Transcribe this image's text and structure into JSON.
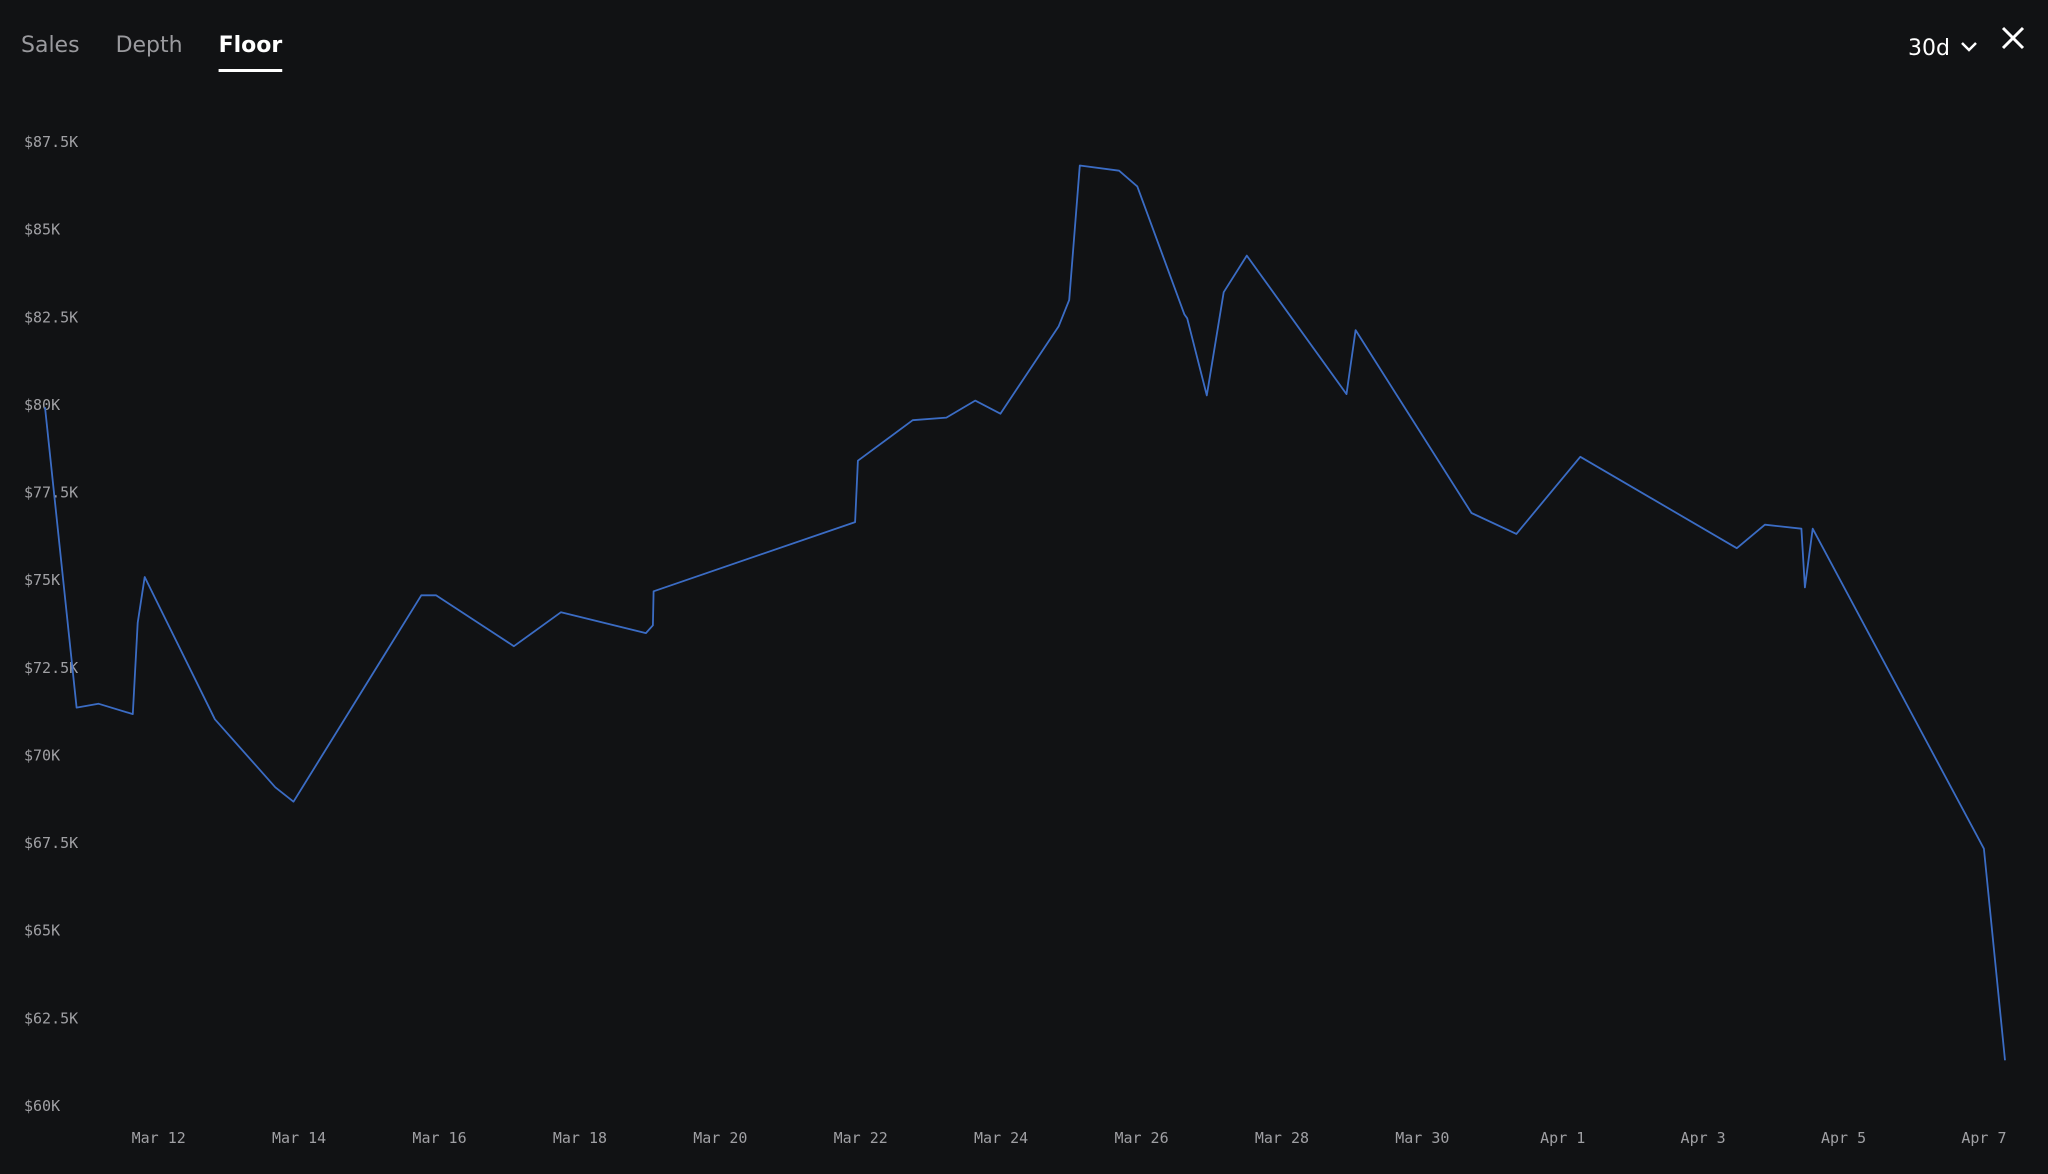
{
  "tabs": [
    {
      "label": "Sales",
      "active": false
    },
    {
      "label": "Depth",
      "active": false
    },
    {
      "label": "Floor",
      "active": true
    }
  ],
  "range": "30d",
  "chart_data": {
    "type": "line",
    "x": [
      69.38,
      69.83,
      70.14,
      70.63,
      70.7,
      70.8,
      71.8,
      72.66,
      72.92,
      74.74,
      74.95,
      76.06,
      76.73,
      77.94,
      78.04,
      78.05,
      80.92,
      80.96,
      81.74,
      82.22,
      82.63,
      82.99,
      83.82,
      83.97,
      84.12,
      84.68,
      84.94,
      85.61,
      85.65,
      85.93,
      86.17,
      86.5,
      87.92,
      88.05,
      89.7,
      90.34,
      91.25,
      93.48,
      93.88,
      94.4,
      94.45,
      94.56,
      97.0,
      97.3
    ],
    "series": [
      {
        "color": "#3b6cc4",
        "values": [
          79936,
          71365,
          71477,
          71179,
          73788,
          75091,
          71030,
          69092,
          68682,
          74570,
          74570,
          73117,
          74086,
          73489,
          73713,
          74682,
          76657,
          78408,
          79563,
          79638,
          80122,
          79750,
          82246,
          82992,
          86830,
          86681,
          86233,
          82582,
          82470,
          80271,
          83215,
          84258,
          80309,
          82134,
          76917,
          76321,
          78520,
          75911,
          76582,
          76470,
          74793,
          76470,
          67341,
          61304
        ]
      }
    ],
    "xlim": [
      69.38,
      97.3
    ],
    "xticks": [
      {
        "value": 71,
        "label": "Mar 12"
      },
      {
        "value": 73,
        "label": "Mar 14"
      },
      {
        "value": 75,
        "label": "Mar 16"
      },
      {
        "value": 77,
        "label": "Mar 18"
      },
      {
        "value": 79,
        "label": "Mar 20"
      },
      {
        "value": 81,
        "label": "Mar 22"
      },
      {
        "value": 83,
        "label": "Mar 24"
      },
      {
        "value": 85,
        "label": "Mar 26"
      },
      {
        "value": 87,
        "label": "Mar 28"
      },
      {
        "value": 89,
        "label": "Mar 30"
      },
      {
        "value": 91,
        "label": "Apr 1"
      },
      {
        "value": 93,
        "label": "Apr 3"
      },
      {
        "value": 95,
        "label": "Apr 5"
      },
      {
        "value": 97,
        "label": "Apr 7"
      }
    ],
    "ylim": [
      60000,
      87500
    ],
    "yticks": [
      {
        "value": 87500,
        "label": "$87.5K"
      },
      {
        "value": 85000,
        "label": "$85K"
      },
      {
        "value": 82500,
        "label": "$82.5K"
      },
      {
        "value": 80000,
        "label": "$80K"
      },
      {
        "value": 77500,
        "label": "$77.5K"
      },
      {
        "value": 75000,
        "label": "$75K"
      },
      {
        "value": 72500,
        "label": "$72.5K"
      },
      {
        "value": 70000,
        "label": "$70K"
      },
      {
        "value": 67500,
        "label": "$67.5K"
      },
      {
        "value": 65000,
        "label": "$65K"
      },
      {
        "value": 62500,
        "label": "$62.5K"
      },
      {
        "value": 60000,
        "label": "$60K"
      }
    ],
    "grid": false
  }
}
